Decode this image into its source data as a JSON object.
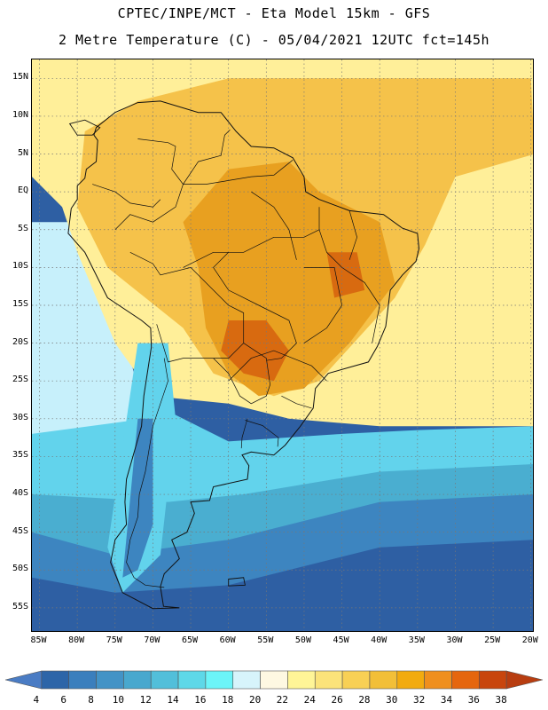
{
  "header": {
    "line1": "CPTEC/INPE/MCT -  Eta Model 15km - GFS",
    "line2": "2 Metre Temperature (C) - 05/04/2021 12UTC fct=145h"
  },
  "map": {
    "variable": "2 Metre Temperature (C)",
    "lat_labels": [
      "15N",
      "10N",
      "5N",
      "EQ",
      "5S",
      "10S",
      "15S",
      "20S",
      "25S",
      "30S",
      "35S",
      "40S",
      "45S",
      "50S",
      "55S"
    ],
    "lat_values": [
      15,
      10,
      5,
      0,
      -5,
      -10,
      -15,
      -20,
      -25,
      -30,
      -35,
      -40,
      -45,
      -50,
      -55
    ],
    "lon_labels": [
      "85W",
      "80W",
      "75W",
      "70W",
      "65W",
      "60W",
      "55W",
      "50W",
      "45W",
      "40W",
      "35W",
      "30W",
      "25W",
      "20W"
    ],
    "lon_values": [
      -85,
      -80,
      -75,
      -70,
      -65,
      -60,
      -55,
      -50,
      -45,
      -40,
      -35,
      -30,
      -25,
      -20
    ],
    "extent": {
      "lon_min": -86,
      "lon_max": -19.5,
      "lat_min": -58.3,
      "lat_max": 17.5
    },
    "zones": [
      {
        "name": "cold-south-pacific",
        "color": "#2e5fa3"
      },
      {
        "name": "subantarctic-ocean",
        "color": "#3d85c0"
      },
      {
        "name": "south-atlantic-cool",
        "color": "#4aaed0"
      },
      {
        "name": "temperate-ocean",
        "color": "#62d3ec"
      },
      {
        "name": "pacific-mild",
        "color": "#c7f0fb"
      },
      {
        "name": "warm-ocean",
        "color": "#ffef99"
      },
      {
        "name": "tropical-atlantic",
        "color": "#f5c24a"
      },
      {
        "name": "hot-interior",
        "color": "#e8a020"
      },
      {
        "name": "hottest-core",
        "color": "#d86a10"
      }
    ]
  },
  "colorbar": {
    "labels": [
      "4",
      "6",
      "8",
      "10",
      "12",
      "14",
      "16",
      "18",
      "20",
      "22",
      "24",
      "26",
      "28",
      "30",
      "32",
      "34",
      "36",
      "38"
    ],
    "colors": [
      "#4a7cc4",
      "#2d65a8",
      "#3b7fbd",
      "#4393c6",
      "#48a8ce",
      "#52bfda",
      "#5ed8e8",
      "#6cf4f8",
      "#d7f4fb",
      "#fef8e2",
      "#fff597",
      "#fbe37a",
      "#f8d055",
      "#f2bf38",
      "#f2ab0f",
      "#ef8f1e",
      "#e5660e",
      "#c8450d",
      "#b83d10"
    ]
  }
}
